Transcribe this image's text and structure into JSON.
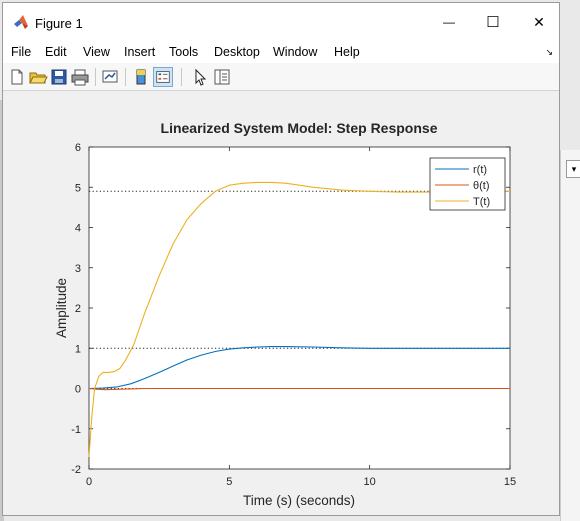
{
  "window": {
    "title": "Figure 1",
    "minimize_glyph": "—",
    "maximize_glyph": "☐",
    "close_glyph": "✕"
  },
  "menu": {
    "items": [
      "File",
      "Edit",
      "View",
      "Insert",
      "Tools",
      "Desktop",
      "Window",
      "Help"
    ]
  },
  "toolbar": {
    "icons": [
      "new-figure-icon",
      "open-file-icon",
      "save-icon",
      "print-icon",
      "link-plot-icon",
      "colorbar-icon",
      "legend-icon",
      "edit-plot-arrow-icon",
      "property-inspector-icon"
    ]
  },
  "colors": {
    "r": "#0072BD",
    "theta": "#D95319",
    "T": "#EDB120"
  },
  "chart_data": {
    "type": "line",
    "title": "Linearized System Model: Step Response",
    "xlabel": "Time (s) (seconds)",
    "ylabel": "Amplitude",
    "xlim": [
      0,
      15
    ],
    "ylim": [
      -2,
      6
    ],
    "xticks": [
      0,
      5,
      10,
      15
    ],
    "yticks": [
      -2,
      -1,
      0,
      1,
      2,
      3,
      4,
      5,
      6
    ],
    "grid": false,
    "legend_position": "top-right",
    "reference_lines": [
      {
        "y": 4.9,
        "style": "dotted"
      },
      {
        "y": 1.0,
        "style": "dotted"
      },
      {
        "y": 0.0,
        "style": "dotted"
      }
    ],
    "series": [
      {
        "name": "r(t)",
        "x": [
          0,
          0.5,
          1,
          1.5,
          2,
          2.5,
          3,
          3.5,
          4,
          4.5,
          5,
          5.5,
          6,
          6.5,
          7,
          8,
          9,
          10,
          11,
          12,
          13,
          14,
          15
        ],
        "values": [
          0,
          0.01,
          0.04,
          0.12,
          0.25,
          0.4,
          0.56,
          0.71,
          0.83,
          0.92,
          0.98,
          1.01,
          1.03,
          1.04,
          1.04,
          1.03,
          1.01,
          1.0,
          1.0,
          1.0,
          1.0,
          1.0,
          1.0
        ]
      },
      {
        "name": "θ(t)",
        "x": [
          0,
          0.3,
          0.6,
          1,
          1.5,
          2,
          3,
          4,
          5,
          6,
          8,
          10,
          12,
          15
        ],
        "values": [
          0,
          -0.02,
          -0.03,
          -0.02,
          -0.01,
          0,
          0,
          0,
          0,
          0,
          0,
          0,
          0,
          0
        ]
      },
      {
        "name": "T(t)",
        "x": [
          0,
          0.1,
          0.2,
          0.35,
          0.5,
          0.7,
          0.9,
          1.1,
          1.3,
          1.6,
          2,
          2.5,
          3,
          3.5,
          4,
          4.5,
          5,
          5.5,
          6,
          6.5,
          7,
          7.5,
          8,
          9,
          10,
          11,
          12,
          13,
          14,
          15
        ],
        "values": [
          -1.7,
          -0.7,
          0.0,
          0.3,
          0.4,
          0.4,
          0.42,
          0.5,
          0.7,
          1.1,
          1.9,
          2.8,
          3.6,
          4.2,
          4.6,
          4.9,
          5.05,
          5.1,
          5.12,
          5.12,
          5.1,
          5.05,
          5.0,
          4.93,
          4.9,
          4.88,
          4.88,
          4.89,
          4.9,
          4.9
        ]
      }
    ]
  }
}
